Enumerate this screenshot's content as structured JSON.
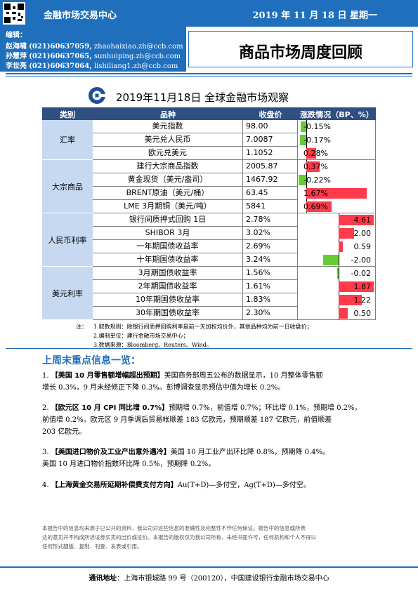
{
  "header": {
    "center_name": "金融市场交易中心",
    "date": "2019 年 11 月 18 日  星期一"
  },
  "editors": {
    "label": "编辑：",
    "people": [
      {
        "name": "赵海啸",
        "phone": "(021)60637059,",
        "email": "zhaohaixiao.zh@ccb.com"
      },
      {
        "name": "孙慧萍",
        "phone": "(021)60637065,",
        "email": "sunhuiping.zh@ccb.com"
      },
      {
        "name": "李世亮",
        "phone": "(021)60637064,",
        "email": "lishiliang1.zh@ccb.com"
      }
    ]
  },
  "report_title": "商品市场周度回顾",
  "snapshot": {
    "title": "2019年11月18日  全球金融市场观察",
    "columns": [
      "类别",
      "品种",
      "收盘价",
      "涨跌情况（BP、%）"
    ],
    "groups": [
      {
        "category": "汇率",
        "rows": [
          {
            "name": "美元指数",
            "close": "98.00",
            "change": -0.15,
            "change_label": "-0.15%"
          },
          {
            "name": "美元兑人民币",
            "close": "7.0087",
            "change": -0.17,
            "change_label": "-0.17%"
          },
          {
            "name": "欧元兑美元",
            "close": "1.1052",
            "change": 0.28,
            "change_label": "0.28%"
          }
        ]
      },
      {
        "category": "大宗商品",
        "rows": [
          {
            "name": "建行大宗商品指数",
            "close": "2005.87",
            "change": 0.37,
            "change_label": "0.37%"
          },
          {
            "name": "黄金现货（美元/盎司）",
            "close": "1467.92",
            "change": -0.22,
            "change_label": "-0.22%"
          },
          {
            "name": "BRENT原油（美元/桶）",
            "close": "63.45",
            "change": 1.67,
            "change_label": "1.67%"
          },
          {
            "name": "LME 3月期铜（美元/吨）",
            "close": "5841",
            "change": 0.69,
            "change_label": "0.69%"
          }
        ]
      },
      {
        "category": "人民币利率",
        "rows": [
          {
            "name": "银行间质押式回购 1日",
            "close": "2.78%",
            "change": 4.61,
            "change_label": "4.61"
          },
          {
            "name": "SHIBOR 3月",
            "close": "3.02%",
            "change": 2.0,
            "change_label": "2.00"
          },
          {
            "name": "一年期国债收益率",
            "close": "2.69%",
            "change": 0.59,
            "change_label": "0.59"
          },
          {
            "name": "十年期国债收益率",
            "close": "3.24%",
            "change": -2.0,
            "change_label": "-2.00"
          }
        ]
      },
      {
        "category": "美元利率",
        "rows": [
          {
            "name": "3月期国债收益率",
            "close": "1.56%",
            "change": -0.02,
            "change_label": "-0.02"
          },
          {
            "name": "2年期国债收益率",
            "close": "1.61%",
            "change": 1.87,
            "change_label": "1.87"
          },
          {
            "name": "10年期国债收益率",
            "close": "1.83%",
            "change": 1.22,
            "change_label": "1.22"
          },
          {
            "name": "30年期国债收益率",
            "close": "2.30%",
            "change": 0.5,
            "change_label": "0.50"
          }
        ]
      }
    ],
    "colors": {
      "header_bg": "#2e4f7f",
      "category_bg": "#c6d9f1",
      "up": "#ff3b4b",
      "down": "#66cc33"
    }
  },
  "notes": {
    "label": "注：",
    "items": [
      "1.取数规则：除银行间质押回购利率是前一天加权均价外，其他品种均为前一日收盘价；",
      "2.编制单位：建行金融市场交易中心；",
      "3.数据来源：Bloomberg、Reuters、Wind。"
    ]
  },
  "highlights": {
    "title": "上周末重点信息一览：",
    "items": [
      {
        "num": "1.",
        "headline": "【美国 10 月零售额增幅超出预期】",
        "lines": [
          "美国商务部周五公布的数据显示，10 月整体零售额",
          "增长 0.3%，9 月未经修正下降 0.3%。彭博调查显示预估中值为增长 0.2%。"
        ]
      },
      {
        "num": "2.",
        "headline": "【欧元区 10 月 CPI 同比增 0.7%】",
        "lines": [
          "预期增 0.7%，前值增 0.7%；环比增 0.1%，预期增 0.2%，",
          "前值增 0.2%。欧元区 9 月季调后贸易帐顺差 183 亿欧元，预期顺差 187 亿欧元，前值顺差",
          "203 亿欧元。"
        ]
      },
      {
        "num": "3.",
        "headline": "【美国进口物价及工业产出意外遇冷】",
        "lines": [
          "美国 10 月工业产出环比降 0.8%，预期降 0.4%。",
          "美国 10 月进口物价指数环比降 0.5%，预期降 0.2%。"
        ]
      },
      {
        "num": "4.",
        "headline": "【上海黄金交易所延期补偿费支付方向】",
        "lines": [
          "Au(T+D)—多付空，Ag(T+D)—多付空。"
        ]
      }
    ]
  },
  "disclaimer": [
    "本报告中的信息均来源于已公开的资料，我公司对这些信息的准确性及完整性不作任何保证。报告中的信息或所表",
    "达的意见并不构成所述证券买卖的出价或征价。本报告的版权仅为我公司所有，未经书面许可，任何机构和个人不得以",
    "任何形式翻版、复制、刊登、发表或引用。"
  ],
  "footer": {
    "label": "通讯地址",
    "text": "：上海市银城路 99 号（200120），中国建设银行金融市场交易中心"
  }
}
